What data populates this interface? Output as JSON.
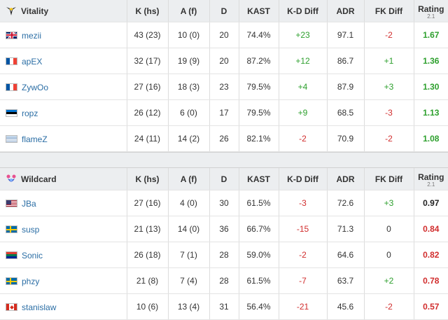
{
  "columns": {
    "k_hs": "K (hs)",
    "a_f": "A (f)",
    "d": "D",
    "kast": "KAST",
    "kd_diff": "K-D Diff",
    "adr": "ADR",
    "fk_diff": "FK Diff",
    "rating": "Rating",
    "rating_version": "2.1"
  },
  "colors": {
    "positive": "#2ea02e",
    "negative": "#d12d2d",
    "link": "#2b6ea5",
    "header_bg": "#eceef0"
  },
  "teams": [
    {
      "name": "Vitality",
      "logo_icon": "vitality-bee-icon",
      "players": [
        {
          "flag": "united-kingdom-flag",
          "name": "mezii",
          "k_hs": "43 (23)",
          "a_f": "10 (0)",
          "d": "20",
          "kast": "74.4%",
          "kd_diff": "+23",
          "adr": "97.1",
          "fk_diff": "-2",
          "rating": "1.67"
        },
        {
          "flag": "france-flag",
          "name": "apEX",
          "k_hs": "32 (17)",
          "a_f": "19 (9)",
          "d": "20",
          "kast": "87.2%",
          "kd_diff": "+12",
          "adr": "86.7",
          "fk_diff": "+1",
          "rating": "1.36"
        },
        {
          "flag": "france-flag",
          "name": "ZywOo",
          "k_hs": "27 (16)",
          "a_f": "18 (3)",
          "d": "23",
          "kast": "79.5%",
          "kd_diff": "+4",
          "adr": "87.9",
          "fk_diff": "+3",
          "rating": "1.30"
        },
        {
          "flag": "estonia-flag",
          "name": "ropz",
          "k_hs": "26 (12)",
          "a_f": "6 (0)",
          "d": "17",
          "kast": "79.5%",
          "kd_diff": "+9",
          "adr": "68.5",
          "fk_diff": "-3",
          "rating": "1.13"
        },
        {
          "flag": "world-flag",
          "name": "flameZ",
          "k_hs": "24 (11)",
          "a_f": "14 (2)",
          "d": "26",
          "kast": "82.1%",
          "kd_diff": "-2",
          "adr": "70.9",
          "fk_diff": "-2",
          "rating": "1.08"
        }
      ]
    },
    {
      "name": "Wildcard",
      "logo_icon": "wildcard-mascot-icon",
      "players": [
        {
          "flag": "united-states-flag",
          "name": "JBa",
          "k_hs": "27 (16)",
          "a_f": "4 (0)",
          "d": "30",
          "kast": "61.5%",
          "kd_diff": "-3",
          "adr": "72.6",
          "fk_diff": "+3",
          "rating": "0.97"
        },
        {
          "flag": "sweden-flag",
          "name": "susp",
          "k_hs": "21 (13)",
          "a_f": "14 (0)",
          "d": "36",
          "kast": "66.7%",
          "kd_diff": "-15",
          "adr": "71.3",
          "fk_diff": "0",
          "rating": "0.84"
        },
        {
          "flag": "south-africa-flag",
          "name": "Sonic",
          "k_hs": "26 (18)",
          "a_f": "7 (1)",
          "d": "28",
          "kast": "59.0%",
          "kd_diff": "-2",
          "adr": "64.6",
          "fk_diff": "0",
          "rating": "0.82"
        },
        {
          "flag": "sweden-flag",
          "name": "phzy",
          "k_hs": "21 (8)",
          "a_f": "7 (4)",
          "d": "28",
          "kast": "61.5%",
          "kd_diff": "-7",
          "adr": "63.7",
          "fk_diff": "+2",
          "rating": "0.78"
        },
        {
          "flag": "canada-flag",
          "name": "stanislaw",
          "k_hs": "10 (6)",
          "a_f": "13 (4)",
          "d": "31",
          "kast": "56.4%",
          "kd_diff": "-21",
          "adr": "45.6",
          "fk_diff": "-2",
          "rating": "0.57"
        }
      ]
    }
  ]
}
